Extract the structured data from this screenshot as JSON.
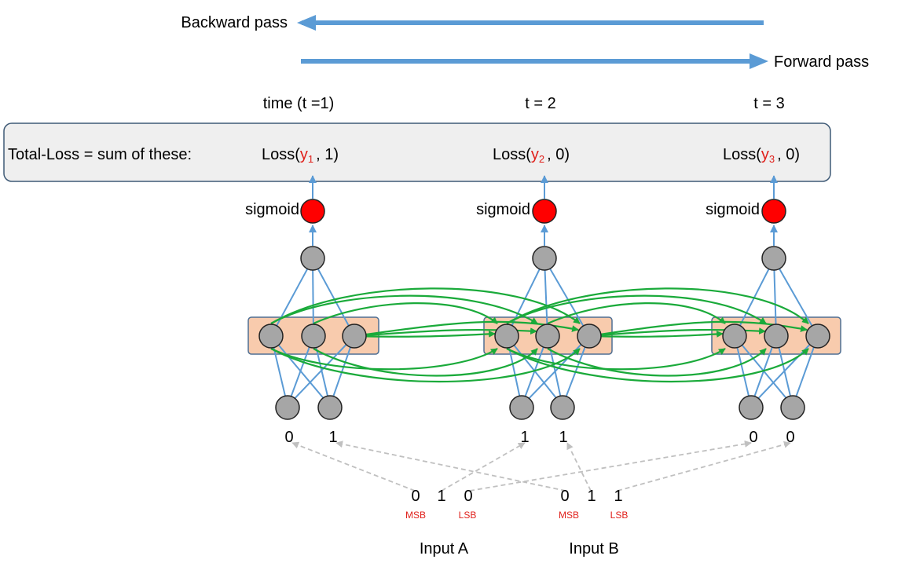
{
  "passes": {
    "backward": "Backward pass",
    "forward": "Forward pass"
  },
  "steps": [
    {
      "time_label": "time (t =1)",
      "loss_prefix": "Loss(",
      "loss_var": "y",
      "loss_sub": "1",
      "loss_suffix": ", 1)",
      "activation": "sigmoid",
      "bits": [
        "0",
        "1"
      ]
    },
    {
      "time_label": "t = 2",
      "loss_prefix": "Loss(",
      "loss_var": "y",
      "loss_sub": "2",
      "loss_suffix": ", 0)",
      "activation": "sigmoid",
      "bits": [
        "1",
        "1"
      ]
    },
    {
      "time_label": "t = 3",
      "loss_prefix": "Loss(",
      "loss_var": "y",
      "loss_sub": "3",
      "loss_suffix": ", 0)",
      "activation": "sigmoid",
      "bits": [
        "0",
        "0"
      ]
    }
  ],
  "total_loss_label": "Total-Loss = sum of these:",
  "inputs": [
    {
      "label": "Input A",
      "digits": [
        "0",
        "1",
        "0"
      ],
      "msb": "MSB",
      "lsb": "LSB"
    },
    {
      "label": "Input B",
      "digits": [
        "0",
        "1",
        "1"
      ],
      "msb": "MSB",
      "lsb": "LSB"
    }
  ],
  "colors": {
    "arrow_blue": "#5b9bd5",
    "recurrent_green": "#1aaa3a",
    "node_gray": "#a6a6a6",
    "output_red": "#ff0000",
    "hidden_box": "#f8cbad",
    "loss_box": "#efefef",
    "dashed_gray": "#c0c0c0",
    "highlight_red": "#e0201b"
  }
}
